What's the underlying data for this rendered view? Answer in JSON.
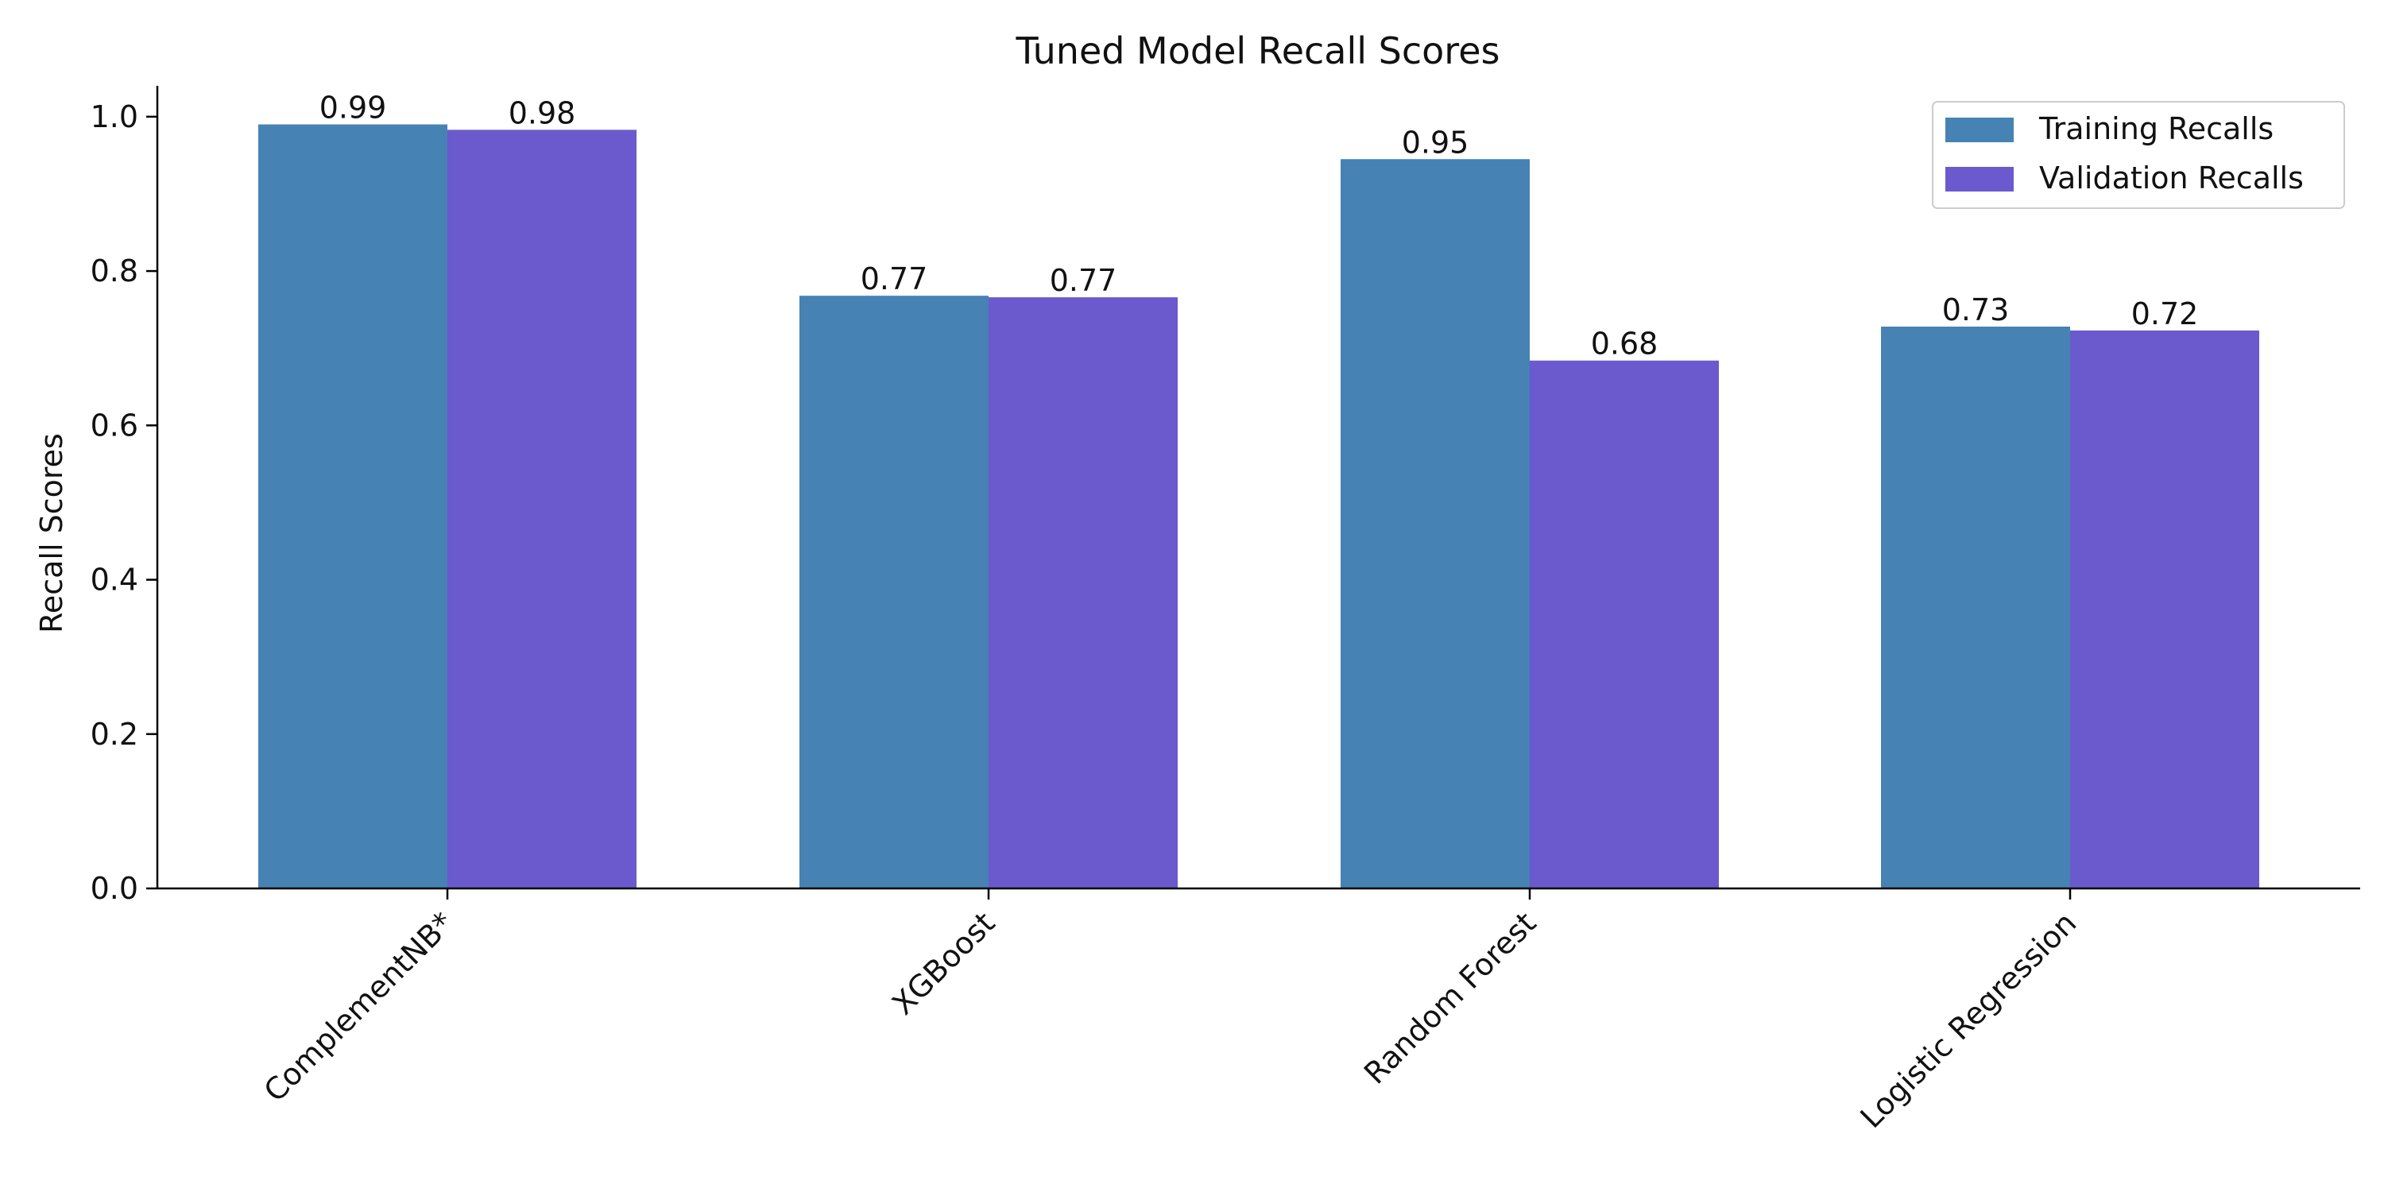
{
  "chart_data": {
    "type": "bar",
    "title": "Tuned Model Recall Scores",
    "xlabel": "",
    "ylabel": "Recall Scores",
    "categories": [
      "ComplementNB*",
      "XGBoost",
      "Random Forest",
      "Logistic Regression"
    ],
    "series": [
      {
        "name": "Training Recalls",
        "values": [
          0.99,
          0.768,
          0.945,
          0.728
        ],
        "labels": [
          "0.99",
          "0.77",
          "0.95",
          "0.73"
        ],
        "color": "#4682b4"
      },
      {
        "name": "Validation Recalls",
        "values": [
          0.983,
          0.766,
          0.684,
          0.723
        ],
        "labels": [
          "0.98",
          "0.77",
          "0.68",
          "0.72"
        ],
        "color": "#6a5acd"
      }
    ],
    "ylim": [
      0,
      1.04
    ],
    "yticks": [
      0.0,
      0.2,
      0.4,
      0.6,
      0.8,
      1.0
    ],
    "ytick_labels": [
      "0.0",
      "0.2",
      "0.4",
      "0.6",
      "0.8",
      "1.0"
    ],
    "xtick_rotation": 45,
    "grid": false,
    "legend": "top-right"
  }
}
